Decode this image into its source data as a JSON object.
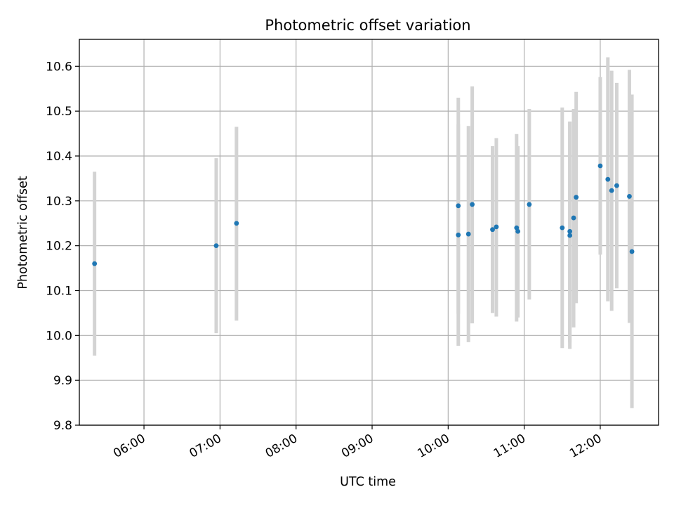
{
  "chart_data": {
    "type": "scatter",
    "title": "Photometric offset variation",
    "xlabel": "UTC time",
    "ylabel": "Photometric offset",
    "x_ticks": [
      "06:00",
      "07:00",
      "08:00",
      "09:00",
      "10:00",
      "11:00",
      "12:00"
    ],
    "y_ticks": [
      "9.8",
      "9.9",
      "10.0",
      "10.1",
      "10.2",
      "10.3",
      "10.4",
      "10.5",
      "10.6"
    ],
    "xlim": [
      "05:09",
      "12:46"
    ],
    "ylim": [
      9.8,
      10.66
    ],
    "grid": true,
    "marker_color": "#1f77b4",
    "errorbar_color": "#d3d3d3",
    "points": [
      {
        "time": "05:21",
        "value": 10.16,
        "lower": 9.955,
        "upper": 10.365
      },
      {
        "time": "06:57",
        "value": 10.2,
        "lower": 10.005,
        "upper": 10.395
      },
      {
        "time": "07:13",
        "value": 10.25,
        "lower": 10.033,
        "upper": 10.465
      },
      {
        "time": "10:08",
        "value": 10.224,
        "lower": 9.977,
        "upper": 10.471
      },
      {
        "time": "10:08",
        "value": 10.289,
        "lower": 10.048,
        "upper": 10.53
      },
      {
        "time": "10:16",
        "value": 10.226,
        "lower": 9.985,
        "upper": 10.467
      },
      {
        "time": "10:19",
        "value": 10.292,
        "lower": 10.027,
        "upper": 10.555
      },
      {
        "time": "10:35",
        "value": 10.236,
        "lower": 10.05,
        "upper": 10.422
      },
      {
        "time": "10:38",
        "value": 10.242,
        "lower": 10.042,
        "upper": 10.44
      },
      {
        "time": "10:54",
        "value": 10.24,
        "lower": 10.031,
        "upper": 10.449
      },
      {
        "time": "10:55",
        "value": 10.232,
        "lower": 10.04,
        "upper": 10.422
      },
      {
        "time": "11:04",
        "value": 10.292,
        "lower": 10.08,
        "upper": 10.505
      },
      {
        "time": "11:30",
        "value": 10.24,
        "lower": 9.972,
        "upper": 10.508
      },
      {
        "time": "11:36",
        "value": 10.232,
        "lower": 9.984,
        "upper": 10.477
      },
      {
        "time": "11:36",
        "value": 10.223,
        "lower": 9.97,
        "upper": 10.476
      },
      {
        "time": "11:39",
        "value": 10.262,
        "lower": 10.018,
        "upper": 10.505
      },
      {
        "time": "11:41",
        "value": 10.308,
        "lower": 10.072,
        "upper": 10.543
      },
      {
        "time": "12:00",
        "value": 10.378,
        "lower": 10.18,
        "upper": 10.576
      },
      {
        "time": "12:06",
        "value": 10.348,
        "lower": 10.076,
        "upper": 10.62
      },
      {
        "time": "12:09",
        "value": 10.323,
        "lower": 10.055,
        "upper": 10.59
      },
      {
        "time": "12:13",
        "value": 10.334,
        "lower": 10.105,
        "upper": 10.563
      },
      {
        "time": "12:23",
        "value": 10.31,
        "lower": 10.028,
        "upper": 10.592
      },
      {
        "time": "12:25",
        "value": 10.187,
        "lower": 9.838,
        "upper": 10.537
      }
    ]
  }
}
